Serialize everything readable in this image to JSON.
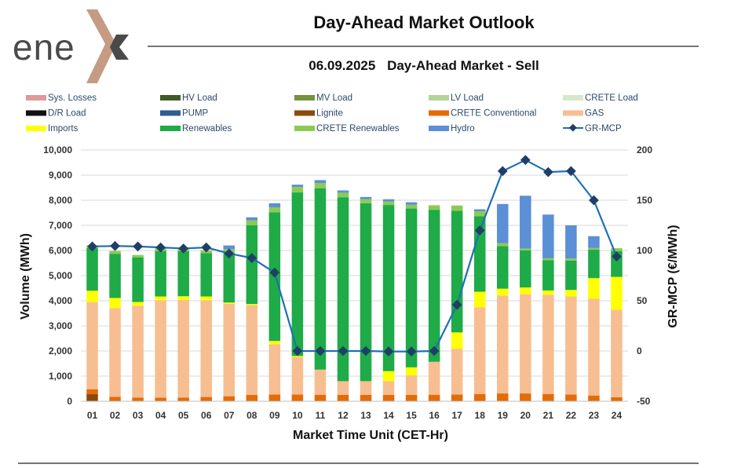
{
  "header": {
    "logo_text": "ene",
    "title": "Day-Ahead Market Outlook",
    "subtitle_date": "06.09.2025",
    "subtitle_text": "Day-Ahead Market - Sell"
  },
  "colors": {
    "Sys. Losses": "#e09a9a",
    "HV Load": "#3f5a23",
    "MV Load": "#76923c",
    "LV Load": "#b2d49a",
    "CRETE Load": "#d7e8c8",
    "D/R Load": "#111111",
    "PUMP": "#2e5d8f",
    "Lignite": "#8b4a0c",
    "CRETE Conventional": "#e36c09",
    "GAS": "#f7be92",
    "Imports": "#ffff00",
    "Renewables": "#1eab48",
    "CRETE Renewables": "#8ccb52",
    "Hydro": "#5b8fd6",
    "GR-MCP": "#1f6fb5",
    "logo_accent": "#c59b84"
  },
  "chart_data": {
    "type": "bar",
    "stacked": true,
    "categories": [
      "01",
      "02",
      "03",
      "04",
      "05",
      "06",
      "07",
      "08",
      "09",
      "10",
      "11",
      "12",
      "13",
      "14",
      "15",
      "16",
      "17",
      "18",
      "19",
      "20",
      "21",
      "22",
      "23",
      "24"
    ],
    "xlabel": "Market Time Unit (CET-Hr)",
    "ylabel": "Volume (MWh)",
    "y2label": "GR-MCP (€/MWh)",
    "ylim": [
      0,
      10000
    ],
    "y2lim": [
      -50,
      200
    ],
    "yticks": [
      "0",
      "1,000",
      "2,000",
      "3,000",
      "4,000",
      "5,000",
      "6,000",
      "7,000",
      "8,000",
      "9,000",
      "10,000"
    ],
    "y2ticks": [
      "-50",
      "0",
      "50",
      "100",
      "150",
      "200"
    ],
    "legend_labels": [
      "Sys. Losses",
      "HV Load",
      "MV Load",
      "LV Load",
      "CRETE Load",
      "D/R Load",
      "PUMP",
      "Lignite",
      "CRETE Conventional",
      "GAS",
      "Imports",
      "Renewables",
      "CRETE Renewables",
      "Hydro",
      "GR-MCP"
    ],
    "legend_position": "top",
    "series": [
      {
        "name": "Lignite",
        "values": [
          280,
          0,
          0,
          0,
          0,
          0,
          0,
          0,
          0,
          0,
          0,
          0,
          0,
          0,
          0,
          0,
          0,
          0,
          0,
          0,
          0,
          0,
          0,
          0
        ]
      },
      {
        "name": "CRETE Conventional",
        "values": [
          200,
          180,
          150,
          140,
          150,
          170,
          200,
          250,
          270,
          270,
          260,
          250,
          250,
          250,
          250,
          260,
          270,
          290,
          310,
          310,
          290,
          270,
          230,
          160
        ]
      },
      {
        "name": "GAS",
        "values": [
          3470,
          3530,
          3650,
          3880,
          3880,
          3850,
          3680,
          3570,
          2000,
          1480,
          1000,
          550,
          550,
          550,
          780,
          1310,
          1820,
          3450,
          3900,
          3950,
          3950,
          3900,
          3850,
          3480
        ]
      },
      {
        "name": "Imports",
        "values": [
          450,
          400,
          150,
          150,
          150,
          150,
          50,
          50,
          130,
          50,
          0,
          0,
          0,
          400,
          320,
          0,
          650,
          620,
          270,
          270,
          170,
          260,
          820,
          1310
        ]
      },
      {
        "name": "Renewables",
        "values": [
          1700,
          1760,
          1770,
          1810,
          1790,
          1720,
          1960,
          3130,
          5120,
          6510,
          7220,
          7320,
          7080,
          6610,
          6320,
          6050,
          4840,
          3000,
          1690,
          1470,
          1200,
          1170,
          1130,
          1030
        ]
      },
      {
        "name": "CRETE Renewables",
        "values": [
          100,
          110,
          100,
          110,
          100,
          110,
          160,
          200,
          200,
          220,
          200,
          180,
          160,
          140,
          150,
          180,
          210,
          200,
          120,
          80,
          80,
          80,
          70,
          110
        ]
      },
      {
        "name": "Hydro",
        "values": [
          0,
          0,
          0,
          0,
          0,
          0,
          150,
          120,
          160,
          90,
          120,
          90,
          90,
          90,
          100,
          0,
          0,
          80,
          1560,
          2100,
          1740,
          1320,
          470,
          0
        ]
      }
    ],
    "line_series": {
      "name": "GR-MCP",
      "axis": "secondary",
      "values": [
        104,
        104.5,
        104,
        103,
        102,
        103,
        97,
        92.5,
        78,
        0,
        0,
        0,
        0,
        -0.5,
        -0.5,
        0,
        46,
        120,
        179,
        190,
        178,
        179,
        150,
        94
      ]
    }
  }
}
